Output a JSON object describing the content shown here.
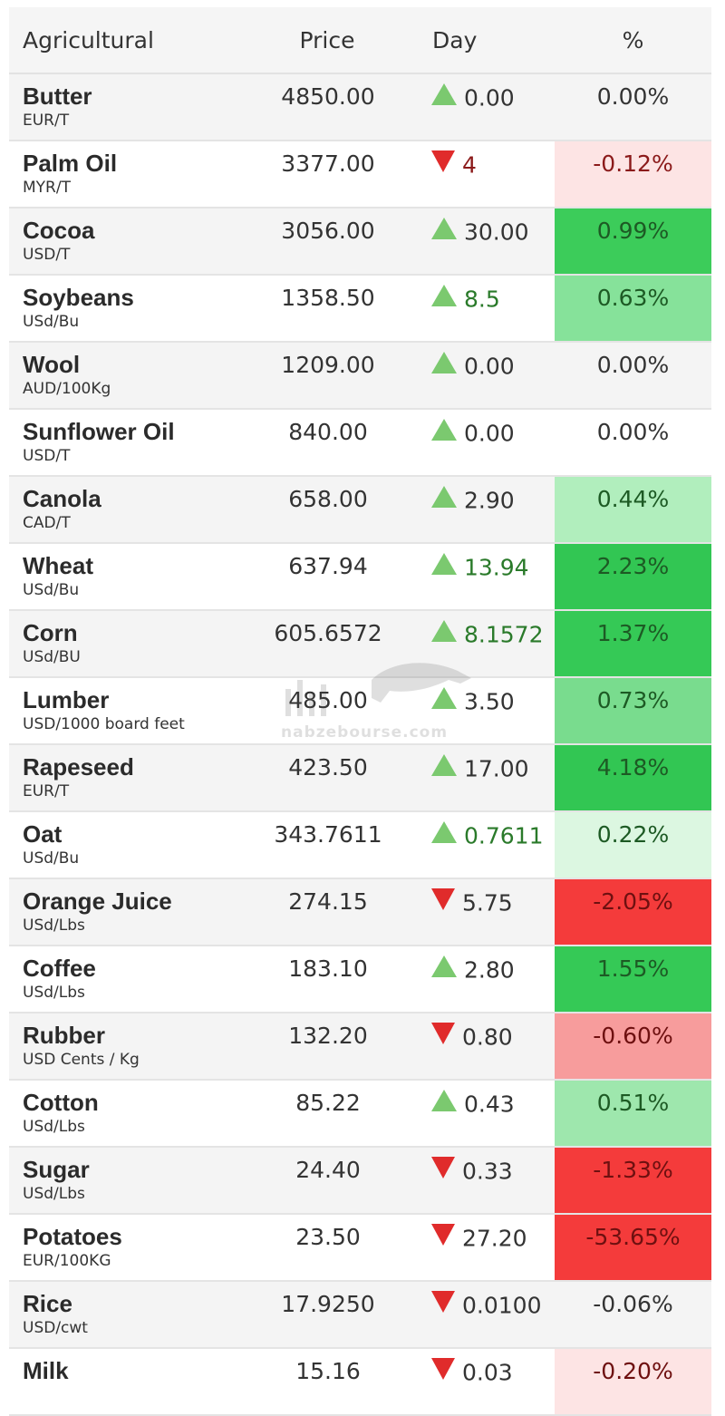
{
  "header": {
    "name": "Agricultural",
    "price": "Price",
    "day": "Day",
    "pct": "%"
  },
  "watermark": {
    "text": "nabzebourse.com"
  },
  "rows": [
    {
      "name": "Butter",
      "unit": "EUR/T",
      "price": "4850.00",
      "day": "0.00",
      "dir": "up",
      "pct": "0.00%",
      "pct_bg": "",
      "day_color": "#333333",
      "pct_color": "#333333",
      "alt": true
    },
    {
      "name": "Palm Oil",
      "unit": "MYR/T",
      "price": "3377.00",
      "day": "4",
      "dir": "down",
      "pct": "-0.12%",
      "pct_bg": "#fde4e4",
      "day_color": "#8b1a1a",
      "pct_color": "#8b1a1a",
      "alt": false
    },
    {
      "name": "Cocoa",
      "unit": "USD/T",
      "price": "3056.00",
      "day": "30.00",
      "dir": "up",
      "pct": "0.99%",
      "pct_bg": "#3ccc5a",
      "day_color": "#333333",
      "pct_color": "#1d5a24",
      "alt": true
    },
    {
      "name": "Soybeans",
      "unit": "USd/Bu",
      "price": "1358.50",
      "day": "8.5",
      "dir": "up",
      "pct": "0.63%",
      "pct_bg": "#86e29a",
      "day_color": "#2a7a2a",
      "pct_color": "#1d5a24",
      "alt": false
    },
    {
      "name": "Wool",
      "unit": "AUD/100Kg",
      "price": "1209.00",
      "day": "0.00",
      "dir": "up",
      "pct": "0.00%",
      "pct_bg": "",
      "day_color": "#333333",
      "pct_color": "#333333",
      "alt": true
    },
    {
      "name": "Sunflower Oil",
      "unit": "USD/T",
      "price": "840.00",
      "day": "0.00",
      "dir": "up",
      "pct": "0.00%",
      "pct_bg": "",
      "day_color": "#333333",
      "pct_color": "#333333",
      "alt": false
    },
    {
      "name": "Canola",
      "unit": "CAD/T",
      "price": "658.00",
      "day": "2.90",
      "dir": "up",
      "pct": "0.44%",
      "pct_bg": "#b1eebd",
      "day_color": "#333333",
      "pct_color": "#1d5a24",
      "alt": true
    },
    {
      "name": "Wheat",
      "unit": "USd/Bu",
      "price": "637.94",
      "day": "13.94",
      "dir": "up",
      "pct": "2.23%",
      "pct_bg": "#32c653",
      "day_color": "#2a7a2a",
      "pct_color": "#1d5a24",
      "alt": false
    },
    {
      "name": "Corn",
      "unit": "USd/BU",
      "price": "605.6572",
      "day": "8.1572",
      "dir": "up",
      "pct": "1.37%",
      "pct_bg": "#35c956",
      "day_color": "#2a7a2a",
      "pct_color": "#1d5a24",
      "alt": true
    },
    {
      "name": "Lumber",
      "unit": "USD/1000 board feet",
      "price": "485.00",
      "day": "3.50",
      "dir": "up",
      "pct": "0.73%",
      "pct_bg": "#79dc8e",
      "day_color": "#333333",
      "pct_color": "#1d5a24",
      "alt": false
    },
    {
      "name": "Rapeseed",
      "unit": "EUR/T",
      "price": "423.50",
      "day": "17.00",
      "dir": "up",
      "pct": "4.18%",
      "pct_bg": "#32c653",
      "day_color": "#333333",
      "pct_color": "#1d5a24",
      "alt": true
    },
    {
      "name": "Oat",
      "unit": "USd/Bu",
      "price": "343.7611",
      "day": "0.7611",
      "dir": "up",
      "pct": "0.22%",
      "pct_bg": "#dcf7e1",
      "day_color": "#2a7a2a",
      "pct_color": "#1d5a24",
      "alt": false
    },
    {
      "name": "Orange Juice",
      "unit": "USd/Lbs",
      "price": "274.15",
      "day": "5.75",
      "dir": "down",
      "pct": "-2.05%",
      "pct_bg": "#f43b3b",
      "day_color": "#333333",
      "pct_color": "#6e1010",
      "alt": true
    },
    {
      "name": "Coffee",
      "unit": "USd/Lbs",
      "price": "183.10",
      "day": "2.80",
      "dir": "up",
      "pct": "1.55%",
      "pct_bg": "#35c956",
      "day_color": "#333333",
      "pct_color": "#1d5a24",
      "alt": false
    },
    {
      "name": "Rubber",
      "unit": "USD Cents / Kg",
      "price": "132.20",
      "day": "0.80",
      "dir": "down",
      "pct": "-0.60%",
      "pct_bg": "#f79c9c",
      "day_color": "#333333",
      "pct_color": "#6e1010",
      "alt": true
    },
    {
      "name": "Cotton",
      "unit": "USd/Lbs",
      "price": "85.22",
      "day": "0.43",
      "dir": "up",
      "pct": "0.51%",
      "pct_bg": "#9ee7ad",
      "day_color": "#333333",
      "pct_color": "#1d5a24",
      "alt": false
    },
    {
      "name": "Sugar",
      "unit": "USd/Lbs",
      "price": "24.40",
      "day": "0.33",
      "dir": "down",
      "pct": "-1.33%",
      "pct_bg": "#f43b3b",
      "day_color": "#333333",
      "pct_color": "#6e1010",
      "alt": true
    },
    {
      "name": "Potatoes",
      "unit": "EUR/100KG",
      "price": "23.50",
      "day": "27.20",
      "dir": "down",
      "pct": "-53.65%",
      "pct_bg": "#f43b3b",
      "day_color": "#333333",
      "pct_color": "#6e1010",
      "alt": false
    },
    {
      "name": "Rice",
      "unit": "USD/cwt",
      "price": "17.9250",
      "day": "0.0100",
      "dir": "down",
      "pct": "-0.06%",
      "pct_bg": "",
      "day_color": "#333333",
      "pct_color": "#333333",
      "alt": true
    },
    {
      "name": "Milk",
      "unit": "",
      "price": "15.16",
      "day": "0.03",
      "dir": "down",
      "pct": "-0.20%",
      "pct_bg": "#fde4e4",
      "day_color": "#333333",
      "pct_color": "#6e1010",
      "alt": false
    }
  ]
}
